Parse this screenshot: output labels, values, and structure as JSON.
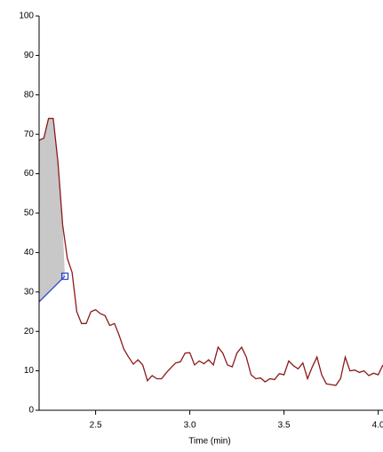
{
  "chart_data": {
    "type": "line",
    "x_label": "Time (min)",
    "xlim": [
      2.2,
      4.03
    ],
    "ylim": [
      0,
      100
    ],
    "xticks": [
      2.5,
      {
        "value": 3,
        "label": "3.0"
      },
      3.5,
      {
        "value": 4,
        "label": "4.0"
      }
    ],
    "yticks": [
      0,
      10,
      20,
      30,
      40,
      50,
      60,
      70,
      80,
      90,
      100
    ],
    "color": "#8b1a1a",
    "x": [
      2.2,
      2.225,
      2.25,
      2.275,
      2.3,
      2.325,
      2.35,
      2.375,
      2.4,
      2.425,
      2.45,
      2.475,
      2.5,
      2.525,
      2.55,
      2.575,
      2.6,
      2.625,
      2.65,
      2.675,
      2.7,
      2.725,
      2.75,
      2.775,
      2.8,
      2.825,
      2.85,
      2.875,
      2.9,
      2.925,
      2.95,
      2.975,
      3.0,
      3.025,
      3.05,
      3.075,
      3.1,
      3.125,
      3.15,
      3.175,
      3.2,
      3.225,
      3.25,
      3.275,
      3.3,
      3.325,
      3.35,
      3.375,
      3.4,
      3.425,
      3.45,
      3.475,
      3.5,
      3.525,
      3.55,
      3.575,
      3.6,
      3.625,
      3.65,
      3.675,
      3.7,
      3.725,
      3.75,
      3.775,
      3.8,
      3.825,
      3.85,
      3.875,
      3.9,
      3.925,
      3.95,
      3.975,
      4.0,
      4.025
    ],
    "values": [
      68.5,
      69,
      74,
      74,
      63,
      47,
      38.5,
      35,
      25,
      22,
      22,
      25,
      25.5,
      24.5,
      24,
      21.5,
      22,
      19,
      15.5,
      13.5,
      11.7,
      12.8,
      11.5,
      7.5,
      8.8,
      8,
      8,
      9.5,
      10.8,
      12,
      12.3,
      14.5,
      14.6,
      11.5,
      12.5,
      11.8,
      12.8,
      11.5,
      16,
      14.5,
      11.5,
      11,
      14.5,
      16,
      13.5,
      9,
      8,
      8.2,
      7.2,
      8,
      7.8,
      9.3,
      9,
      12.5,
      11.3,
      10.5,
      12,
      8,
      11,
      13.5,
      9,
      6.7,
      6.5,
      6.3,
      8,
      13.5,
      10,
      10.2,
      9.6,
      10,
      8.8,
      9.4,
      9,
      11.5
    ],
    "baseline": {
      "color": "#2a3fd0",
      "x": [
        2.2,
        2.337
      ],
      "values": [
        27.5,
        34
      ]
    },
    "fill_color": "#c8c8c8"
  }
}
